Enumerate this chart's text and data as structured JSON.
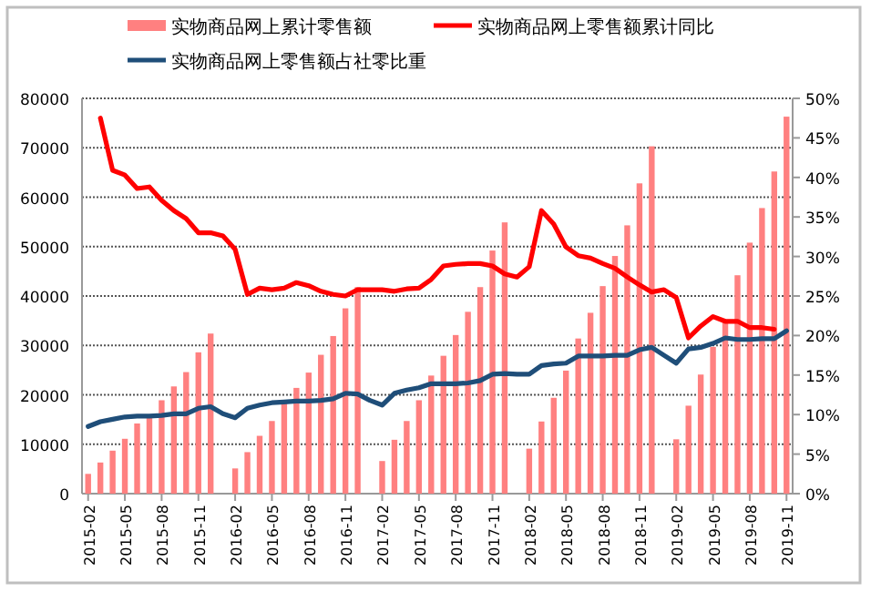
{
  "chart_data": {
    "type": "bar",
    "categories": [
      "2015-02",
      null,
      null,
      "2015-05",
      null,
      null,
      "2015-08",
      null,
      null,
      "2015-11",
      null,
      null,
      "2016-02",
      null,
      null,
      "2016-05",
      null,
      null,
      "2016-08",
      null,
      null,
      "2016-11",
      null,
      null,
      "2017-02",
      null,
      null,
      "2017-05",
      null,
      null,
      "2017-08",
      null,
      null,
      "2017-11",
      null,
      null,
      "2018-02",
      null,
      null,
      "2018-05",
      null,
      null,
      "2018-08",
      null,
      null,
      "2018-11",
      null,
      null,
      "2019-02",
      null,
      null,
      "2019-05",
      null,
      null,
      "2019-08",
      null,
      null,
      "2019-11"
    ],
    "series": [
      {
        "name": "实物商品网上累计零售额",
        "color": "#ff8080",
        "values": [
          4000,
          6300,
          8700,
          11100,
          14200,
          15800,
          18900,
          21700,
          24600,
          28600,
          32400,
          null,
          5100,
          8400,
          11700,
          14700,
          18500,
          21400,
          24500,
          28100,
          31900,
          37500,
          41800,
          null,
          6600,
          10900,
          14700,
          18900,
          23900,
          27900,
          32100,
          36800,
          41800,
          49200,
          54900,
          null,
          9100,
          14600,
          19400,
          24900,
          31400,
          36600,
          42000,
          48100,
          54300,
          62800,
          70300,
          null,
          11000,
          17800,
          24100,
          29700,
          34800,
          44200,
          50800,
          57800,
          65200,
          76300
        ]
      },
      {
        "name": "实物商品网上零售额累计同比",
        "type": "line",
        "axis": "y2",
        "color": "#ff0000",
        "values": [
          null,
          47.5,
          40.9,
          40.3,
          38.6,
          38.8,
          37.1,
          35.8,
          34.8,
          33.0,
          33.0,
          32.6,
          30.9,
          25.2,
          26.0,
          25.8,
          26.0,
          26.7,
          26.3,
          25.6,
          25.2,
          25.0,
          25.8,
          25.8,
          25.8,
          25.6,
          25.9,
          26.0,
          27.1,
          28.8,
          29.0,
          29.1,
          29.1,
          28.8,
          27.8,
          27.4,
          28.7,
          35.8,
          34.1,
          31.2,
          30.1,
          29.8,
          29.1,
          28.5,
          27.4,
          26.4,
          25.5,
          25.8,
          24.8,
          19.7,
          21.2,
          22.4,
          21.8,
          21.8,
          21.0,
          21.0,
          20.8,
          null
        ]
      },
      {
        "name": "实物商品网上零售额占社零比重",
        "type": "line",
        "axis": "y2",
        "color": "#1f4e79",
        "values": [
          8.5,
          9.1,
          9.4,
          9.7,
          9.8,
          9.8,
          9.9,
          10.1,
          10.1,
          10.8,
          11.0,
          10.1,
          9.6,
          10.8,
          11.2,
          11.5,
          11.6,
          11.7,
          11.7,
          11.8,
          12.0,
          12.7,
          12.6,
          11.8,
          11.2,
          12.7,
          13.1,
          13.4,
          13.9,
          13.9,
          13.9,
          14.0,
          14.3,
          15.1,
          15.2,
          15.1,
          15.1,
          16.2,
          16.4,
          16.5,
          17.4,
          17.4,
          17.4,
          17.5,
          17.5,
          18.2,
          18.5,
          17.5,
          16.5,
          18.3,
          18.5,
          19.0,
          19.7,
          19.5,
          19.5,
          19.6,
          19.6,
          20.6
        ]
      }
    ],
    "ylim": [
      0,
      80000
    ],
    "yticks": [
      0,
      10000,
      20000,
      30000,
      40000,
      50000,
      60000,
      70000,
      80000
    ],
    "y2lim": [
      0,
      50
    ],
    "y2ticks": [
      {
        "value": 0,
        "label": "0%"
      },
      {
        "value": 5,
        "label": "5%"
      },
      {
        "value": 10,
        "label": "10%"
      },
      {
        "value": 15,
        "label": "15%"
      },
      {
        "value": 20,
        "label": "20%"
      },
      {
        "value": 25,
        "label": "25%"
      },
      {
        "value": 30,
        "label": "30%"
      },
      {
        "value": 35,
        "label": "35%"
      },
      {
        "value": 40,
        "label": "40%"
      },
      {
        "value": 45,
        "label": "45%"
      },
      {
        "value": 50,
        "label": "50%"
      }
    ],
    "grid": "y",
    "legend": "top"
  }
}
